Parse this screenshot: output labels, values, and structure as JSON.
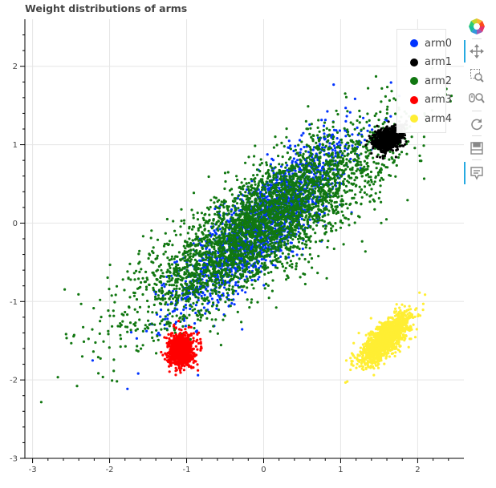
{
  "title": "Weight distributions of arms",
  "toolbar": {
    "tools": [
      {
        "name": "bokeh-logo-icon",
        "active": false
      },
      {
        "name": "pan-icon",
        "active": true
      },
      {
        "name": "box-zoom-icon",
        "active": false
      },
      {
        "name": "wheel-zoom-icon",
        "active": false
      },
      {
        "name": "reset-icon",
        "active": false
      },
      {
        "name": "save-icon",
        "active": false
      },
      {
        "name": "hover-icon",
        "active": true
      }
    ]
  },
  "chart_data": {
    "type": "scatter",
    "title": "Weight distributions of arms",
    "xlabel": "",
    "ylabel": "",
    "xlim": [
      -3.1,
      2.6
    ],
    "ylim": [
      -3.0,
      2.6
    ],
    "x_ticks": [
      -3,
      -2,
      -1,
      0,
      1,
      2
    ],
    "y_ticks": [
      -3,
      -2,
      -1,
      0,
      1,
      2
    ],
    "grid": true,
    "legend_position": "top-right",
    "series": [
      {
        "name": "arm0",
        "color": "#0033ff",
        "distribution": {
          "mean": [
            0.0,
            0.0
          ],
          "std": [
            0.55,
            0.55
          ],
          "corr": 0.85,
          "count": 1800
        }
      },
      {
        "name": "arm1",
        "color": "#000000",
        "distribution": {
          "mean": [
            1.62,
            1.08
          ],
          "std": [
            0.1,
            0.08
          ],
          "corr": 0.3,
          "count": 700
        }
      },
      {
        "name": "arm2",
        "color": "#117711",
        "distribution": {
          "mean": [
            0.0,
            0.0
          ],
          "std": [
            0.8,
            0.6
          ],
          "corr": 0.82,
          "count": 3600
        }
      },
      {
        "name": "arm3",
        "color": "#ff0000",
        "distribution": {
          "mean": [
            -1.07,
            -1.62
          ],
          "std": [
            0.08,
            0.1
          ],
          "corr": 0.1,
          "count": 900
        }
      },
      {
        "name": "arm4",
        "color": "#ffee33",
        "distribution": {
          "mean": [
            1.58,
            -1.48
          ],
          "std": [
            0.16,
            0.16
          ],
          "corr": 0.75,
          "count": 1400
        }
      }
    ]
  }
}
